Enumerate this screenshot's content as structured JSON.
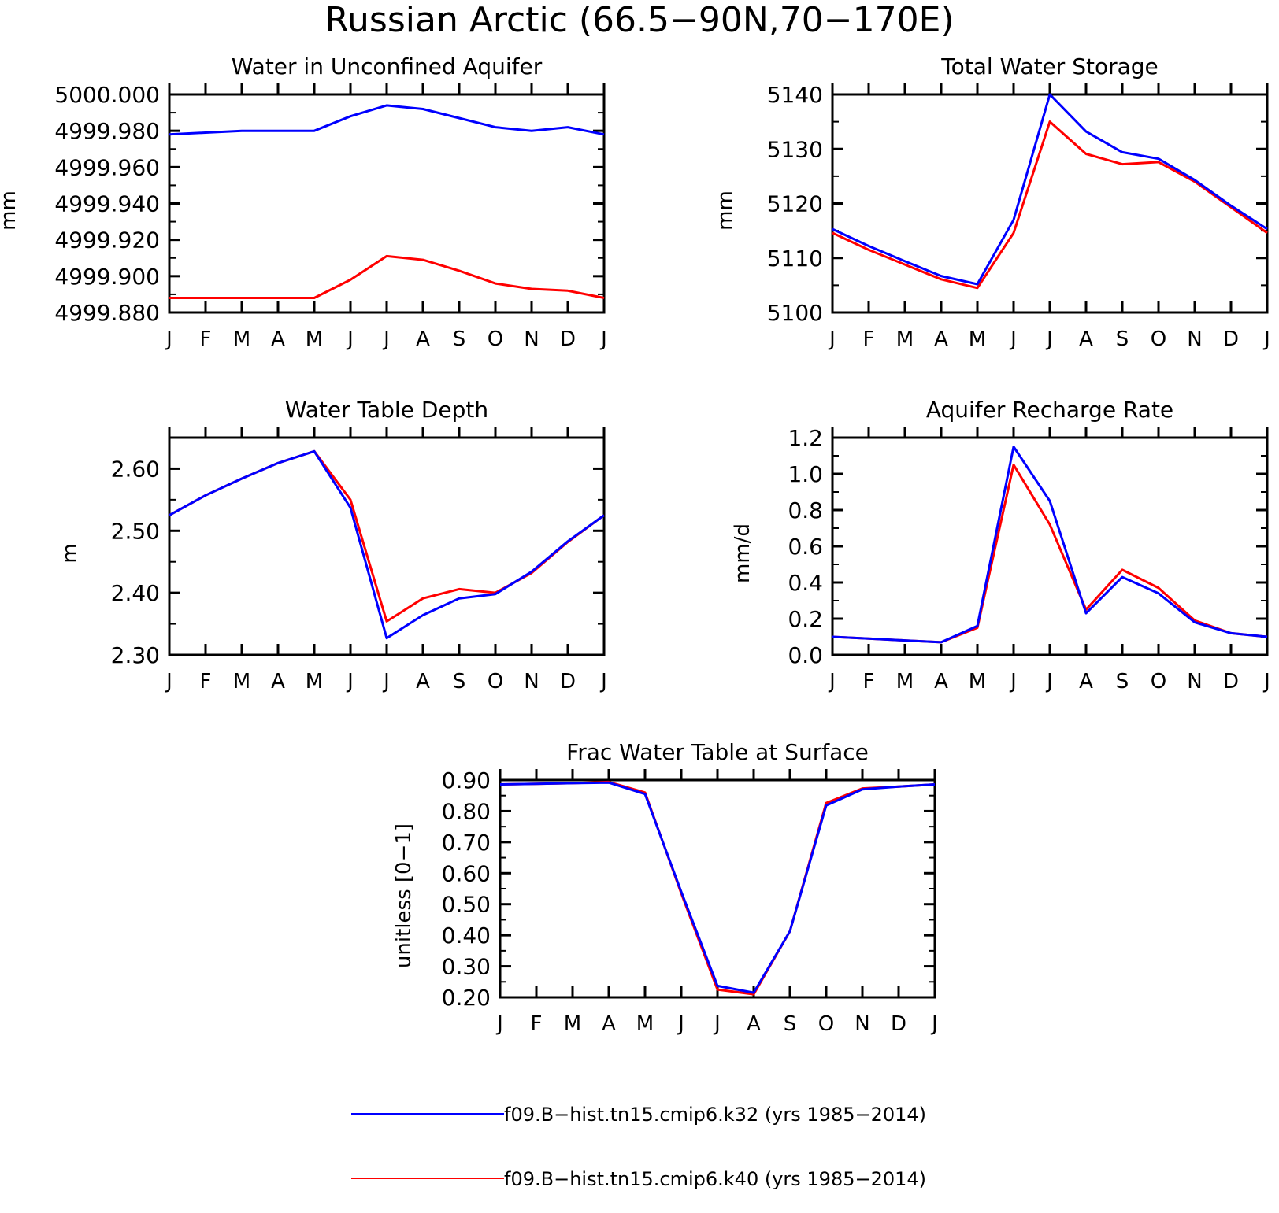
{
  "figure": {
    "title": "Russian Arctic (66.5−90N,70−170E)"
  },
  "colors": {
    "k32": "#0000ff",
    "k40": "#ff0000",
    "axis": "#000000"
  },
  "legend": {
    "placement": "bottom-center",
    "entries": [
      {
        "label": "f09.B−hist.tn15.cmip6.k32 (yrs 1985−2014)",
        "color": "#0000ff"
      },
      {
        "label": "f09.B−hist.tn15.cmip6.k40 (yrs 1985−2014)",
        "color": "#ff0000"
      }
    ]
  },
  "chart_data": [
    {
      "type": "line",
      "title": "Water in Unconfined Aquifer",
      "ylabel": "mm",
      "xlabel": "",
      "categories": [
        "J",
        "F",
        "M",
        "A",
        "M",
        "J",
        "J",
        "A",
        "S",
        "O",
        "N",
        "D",
        "J"
      ],
      "ylim": [
        4999.88,
        5000.0
      ],
      "yticks": [
        4999.88,
        4999.9,
        4999.92,
        4999.94,
        4999.96,
        4999.98,
        5000.0
      ],
      "ytick_labels": [
        "4999.880",
        "4999.900",
        "4999.920",
        "4999.940",
        "4999.960",
        "4999.980",
        "5000.000"
      ],
      "series": [
        {
          "name": "f09.B−hist.tn15.cmip6.k32 (yrs 1985−2014)",
          "color": "#0000ff",
          "values": [
            4999.978,
            4999.979,
            4999.98,
            4999.98,
            4999.98,
            4999.988,
            4999.994,
            4999.992,
            4999.987,
            4999.982,
            4999.98,
            4999.982,
            4999.978
          ]
        },
        {
          "name": "f09.B−hist.tn15.cmip6.k40 (yrs 1985−2014)",
          "color": "#ff0000",
          "values": [
            4999.888,
            4999.888,
            4999.888,
            4999.888,
            4999.888,
            4999.898,
            4999.911,
            4999.909,
            4999.903,
            4999.896,
            4999.893,
            4999.892,
            4999.888
          ]
        }
      ]
    },
    {
      "type": "line",
      "title": "Total Water Storage",
      "ylabel": "mm",
      "xlabel": "",
      "categories": [
        "J",
        "F",
        "M",
        "A",
        "M",
        "J",
        "J",
        "A",
        "S",
        "O",
        "N",
        "D",
        "J"
      ],
      "ylim": [
        5100,
        5140
      ],
      "yticks": [
        5100,
        5110,
        5120,
        5130,
        5140
      ],
      "ytick_labels": [
        "5100",
        "5110",
        "5120",
        "5130",
        "5140"
      ],
      "series": [
        {
          "name": "f09.B−hist.tn15.cmip6.k32 (yrs 1985−2014)",
          "color": "#0000ff",
          "values": [
            5115.3,
            5112.2,
            5109.4,
            5106.7,
            5105.2,
            5117.0,
            5140.0,
            5133.2,
            5129.4,
            5128.2,
            5124.3,
            5119.6,
            5115.3
          ]
        },
        {
          "name": "f09.B−hist.tn15.cmip6.k40 (yrs 1985−2014)",
          "color": "#ff0000",
          "values": [
            5114.6,
            5111.5,
            5108.8,
            5106.1,
            5104.5,
            5114.6,
            5135.0,
            5129.1,
            5127.2,
            5127.6,
            5124.0,
            5119.3,
            5114.6
          ]
        }
      ]
    },
    {
      "type": "line",
      "title": "Water Table Depth",
      "ylabel": "m",
      "xlabel": "",
      "categories": [
        "J",
        "F",
        "M",
        "A",
        "M",
        "J",
        "J",
        "A",
        "S",
        "O",
        "N",
        "D",
        "J"
      ],
      "ylim": [
        2.3,
        2.65
      ],
      "yticks": [
        2.3,
        2.4,
        2.5,
        2.6
      ],
      "ytick_labels": [
        "2.30",
        "2.40",
        "2.50",
        "2.60"
      ],
      "series": [
        {
          "name": "f09.B−hist.tn15.cmip6.k32 (yrs 1985−2014)",
          "color": "#0000ff",
          "values": [
            2.525,
            2.557,
            2.584,
            2.609,
            2.628,
            2.537,
            2.327,
            2.364,
            2.391,
            2.398,
            2.434,
            2.483,
            2.525
          ]
        },
        {
          "name": "f09.B−hist.tn15.cmip6.k40 (yrs 1985−2014)",
          "color": "#ff0000",
          "values": [
            2.525,
            2.557,
            2.584,
            2.609,
            2.628,
            2.55,
            2.354,
            2.391,
            2.406,
            2.4,
            2.432,
            2.482,
            2.525
          ]
        }
      ]
    },
    {
      "type": "line",
      "title": "Aquifer Recharge Rate",
      "ylabel": "mm/d",
      "xlabel": "",
      "categories": [
        "J",
        "F",
        "M",
        "A",
        "M",
        "J",
        "J",
        "A",
        "S",
        "O",
        "N",
        "D",
        "J"
      ],
      "ylim": [
        0.0,
        1.2
      ],
      "yticks": [
        0.0,
        0.2,
        0.4,
        0.6,
        0.8,
        1.0,
        1.2
      ],
      "ytick_labels": [
        "0.0",
        "0.2",
        "0.4",
        "0.6",
        "0.8",
        "1.0",
        "1.2"
      ],
      "series": [
        {
          "name": "f09.B−hist.tn15.cmip6.k32 (yrs 1985−2014)",
          "color": "#0000ff",
          "values": [
            0.1,
            0.09,
            0.08,
            0.07,
            0.16,
            1.15,
            0.85,
            0.23,
            0.43,
            0.34,
            0.18,
            0.12,
            0.1
          ]
        },
        {
          "name": "f09.B−hist.tn15.cmip6.k40 (yrs 1985−2014)",
          "color": "#ff0000",
          "values": [
            0.1,
            0.09,
            0.08,
            0.07,
            0.15,
            1.05,
            0.72,
            0.25,
            0.47,
            0.37,
            0.19,
            0.12,
            0.1
          ]
        }
      ]
    },
    {
      "type": "line",
      "title": "Frac Water Table at Surface",
      "ylabel": "unitless [0−1]",
      "xlabel": "",
      "categories": [
        "J",
        "F",
        "M",
        "A",
        "M",
        "J",
        "J",
        "A",
        "S",
        "O",
        "N",
        "D",
        "J"
      ],
      "ylim": [
        0.2,
        0.9
      ],
      "yticks": [
        0.2,
        0.3,
        0.4,
        0.5,
        0.6,
        0.7,
        0.8,
        0.9
      ],
      "ytick_labels": [
        "0.20",
        "0.30",
        "0.40",
        "0.50",
        "0.60",
        "0.70",
        "0.80",
        "0.90"
      ],
      "series": [
        {
          "name": "f09.B−hist.tn15.cmip6.k32 (yrs 1985−2014)",
          "color": "#0000ff",
          "values": [
            0.886,
            0.888,
            0.89,
            0.892,
            0.855,
            0.54,
            0.237,
            0.215,
            0.413,
            0.818,
            0.87,
            0.879,
            0.886
          ]
        },
        {
          "name": "f09.B−hist.tn15.cmip6.k40 (yrs 1985−2014)",
          "color": "#ff0000",
          "values": [
            0.886,
            0.888,
            0.89,
            0.894,
            0.86,
            0.535,
            0.225,
            0.21,
            0.413,
            0.826,
            0.873,
            0.879,
            0.886
          ]
        }
      ]
    }
  ]
}
